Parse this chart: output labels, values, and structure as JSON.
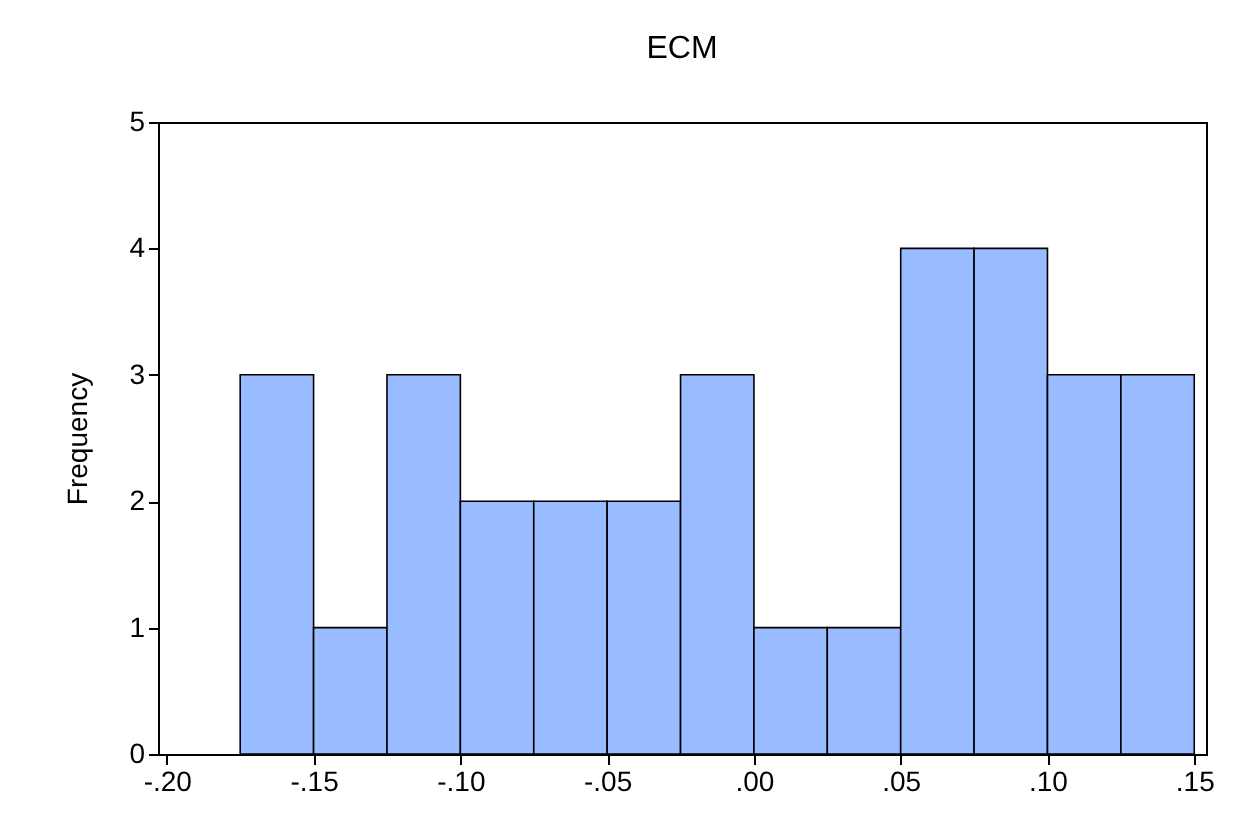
{
  "chart_data": {
    "type": "histogram",
    "title": "ECM",
    "ylabel": "Frequency",
    "bins": [
      -0.175,
      -0.15,
      -0.125,
      -0.1,
      -0.075,
      -0.05,
      -0.025,
      0,
      0.025,
      0.05,
      0.075,
      0.1,
      0.125,
      0.15
    ],
    "values": [
      3,
      1,
      3,
      2,
      2,
      2,
      3,
      1,
      1,
      4,
      4,
      3,
      3
    ],
    "color": "#99bbff",
    "xlim": [
      -0.203,
      0.154
    ],
    "xticks": [
      {
        "value": -0.2,
        "label": "-.20"
      },
      {
        "value": -0.15,
        "label": "-.15"
      },
      {
        "value": -0.1,
        "label": "-.10"
      },
      {
        "value": -0.05,
        "label": "-.05"
      },
      {
        "value": 0,
        "label": ".00"
      },
      {
        "value": 0.05,
        "label": ".05"
      },
      {
        "value": 0.1,
        "label": ".10"
      },
      {
        "value": 0.15,
        "label": ".15"
      }
    ],
    "ylim": [
      0,
      5
    ],
    "yticks": [
      0,
      1,
      2,
      3,
      4,
      5
    ]
  }
}
